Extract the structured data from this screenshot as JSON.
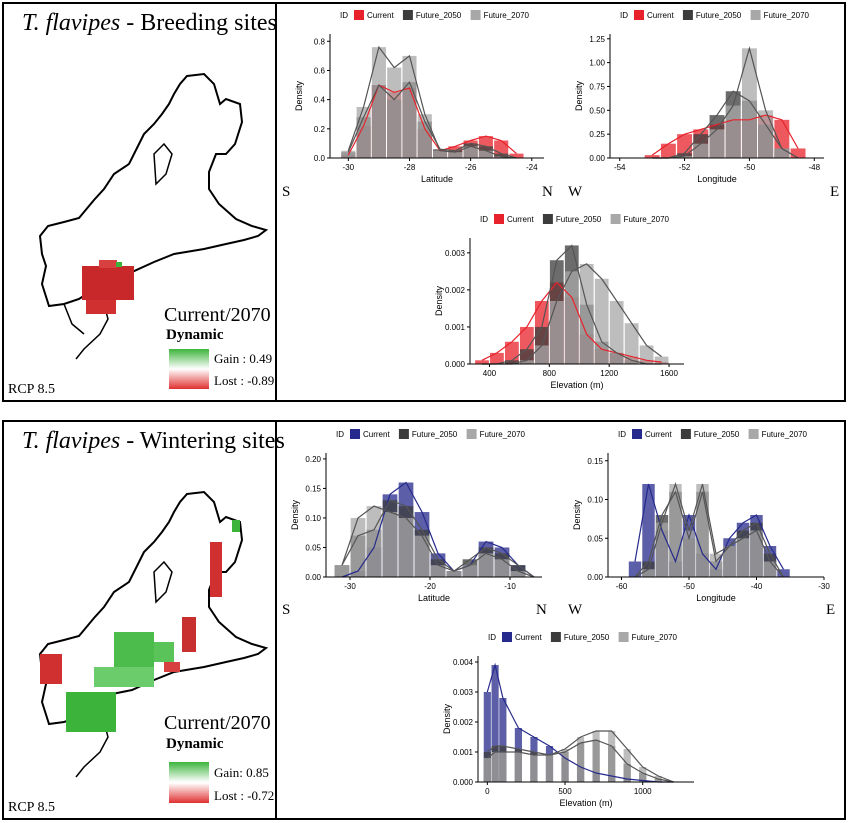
{
  "panels": [
    {
      "title_species": "T. flavipes",
      "title_rest": " - Breeding sites",
      "rcp": "RCP 8.5",
      "legend_title": "Current/2070",
      "legend_dynamic": "Dynamic",
      "gain": "Gain : 0.49",
      "lost": "Lost : -0.89"
    },
    {
      "title_species": "T. flavipes",
      "title_rest": " - Wintering sites",
      "rcp": "RCP 8.5",
      "legend_title": "Current/2070",
      "legend_dynamic": "Dynamic",
      "gain": "Gain: 0.85",
      "lost": "Lost : -0.72"
    }
  ],
  "direction_labels": {
    "south": "S",
    "north": "N",
    "west": "W",
    "east": "E"
  },
  "colors": {
    "breeding_current": "#e8222a",
    "wintering_current": "#262a8c",
    "future_2050": "#3c3c3c",
    "future_2070": "#a8a8a8",
    "gain": "#3cb43c",
    "lost": "#e03030"
  },
  "chart_data": [
    {
      "type": "area",
      "id": "breeding_latitude",
      "legend_title": "ID",
      "legend": [
        "Current",
        "Future_2050",
        "Future_2070"
      ],
      "xlabel": "Latitude",
      "ylabel": "Density",
      "xlim": [
        -30.6,
        -23.6
      ],
      "ylim": [
        0,
        0.85
      ],
      "xticks": [
        "-30",
        "-28",
        "-26",
        "-24"
      ],
      "xtick_values": [
        -30,
        -28,
        -26,
        -24
      ],
      "yticks": [
        "0.0",
        "0.2",
        "0.4",
        "0.6",
        "0.8"
      ],
      "ytick_values": [
        0,
        0.2,
        0.4,
        0.6,
        0.8
      ],
      "x": [
        -30,
        -29.5,
        -29,
        -28.5,
        -28,
        -27.5,
        -27,
        -26.5,
        -26,
        -25.5,
        -25,
        -24.5
      ],
      "series": [
        {
          "name": "Current",
          "values": [
            0.02,
            0.22,
            0.5,
            0.45,
            0.48,
            0.2,
            0.05,
            0.08,
            0.12,
            0.15,
            0.12,
            0.03
          ]
        },
        {
          "name": "Future_2050",
          "values": [
            0.04,
            0.28,
            0.5,
            0.4,
            0.52,
            0.25,
            0.06,
            0.05,
            0.1,
            0.08,
            0.03,
            0.0
          ]
        },
        {
          "name": "Future_2070",
          "values": [
            0.05,
            0.35,
            0.76,
            0.62,
            0.7,
            0.3,
            0.05,
            0.04,
            0.08,
            0.05,
            0.01,
            0.0
          ]
        }
      ]
    },
    {
      "type": "area",
      "id": "breeding_longitude",
      "legend_title": "ID",
      "legend": [
        "Current",
        "Future_2050",
        "Future_2070"
      ],
      "xlabel": "Longitude",
      "ylabel": "Density",
      "xlim": [
        -54.3,
        -47.7
      ],
      "ylim": [
        0,
        1.3
      ],
      "xticks": [
        "-54",
        "-52",
        "-50",
        "-48"
      ],
      "xtick_values": [
        -54,
        -52,
        -50,
        -48
      ],
      "yticks": [
        "0.00",
        "0.25",
        "0.50",
        "0.75",
        "1.00",
        "1.25"
      ],
      "ytick_values": [
        0,
        0.25,
        0.5,
        0.75,
        1,
        1.25
      ],
      "x": [
        -53,
        -52.5,
        -52,
        -51.5,
        -51,
        -50.5,
        -50,
        -49.5,
        -49,
        -48.5
      ],
      "series": [
        {
          "name": "Current",
          "values": [
            0.03,
            0.15,
            0.25,
            0.3,
            0.35,
            0.4,
            0.4,
            0.45,
            0.4,
            0.1
          ]
        },
        {
          "name": "Future_2050",
          "values": [
            0.0,
            0.0,
            0.05,
            0.25,
            0.45,
            0.7,
            0.6,
            0.35,
            0.1,
            0.0
          ]
        },
        {
          "name": "Future_2070",
          "values": [
            0.0,
            0.0,
            0.02,
            0.15,
            0.3,
            0.55,
            1.15,
            0.5,
            0.1,
            0.0
          ]
        }
      ]
    },
    {
      "type": "area",
      "id": "breeding_elevation",
      "legend_title": "ID",
      "legend": [
        "Current",
        "Future_2050",
        "Future_2070"
      ],
      "xlabel": "Elevation (m)",
      "ylabel": "Density",
      "xlim": [
        270,
        1700
      ],
      "ylim": [
        0,
        0.0034
      ],
      "xticks": [
        "400",
        "800",
        "1200",
        "1600"
      ],
      "xtick_values": [
        400,
        800,
        1200,
        1600
      ],
      "yticks": [
        "0.000",
        "0.001",
        "0.002",
        "0.003"
      ],
      "ytick_values": [
        0,
        0.001,
        0.002,
        0.003
      ],
      "x": [
        350,
        450,
        550,
        650,
        750,
        850,
        950,
        1050,
        1150,
        1250,
        1350,
        1450,
        1550
      ],
      "series": [
        {
          "name": "Current",
          "values": [
            0.0001,
            0.0003,
            0.0006,
            0.001,
            0.0017,
            0.0022,
            0.0018,
            0.0008,
            0.0004,
            0.0003,
            0.0002,
            0.0001,
            5e-05
          ]
        },
        {
          "name": "Future_2050",
          "values": [
            0,
            0,
            0.0001,
            0.0004,
            0.001,
            0.0028,
            0.0032,
            0.0016,
            0.0006,
            0.0003,
            0.0001,
            0,
            0
          ]
        },
        {
          "name": "Future_2070",
          "values": [
            0,
            0,
            0,
            0.0001,
            0.0005,
            0.0017,
            0.0025,
            0.0027,
            0.0023,
            0.0017,
            0.0011,
            0.0005,
            0.0002
          ]
        }
      ]
    },
    {
      "type": "area",
      "id": "wintering_latitude",
      "legend_title": "ID",
      "legend": [
        "Current",
        "Future_2050",
        "Future_2070"
      ],
      "xlabel": "Latitude",
      "ylabel": "Density",
      "xlim": [
        -33,
        -6
      ],
      "ylim": [
        0,
        0.21
      ],
      "xticks": [
        "-30",
        "-20",
        "-10"
      ],
      "xtick_values": [
        -30,
        -20,
        -10
      ],
      "yticks": [
        "0.00",
        "0.05",
        "0.10",
        "0.15",
        "0.20"
      ],
      "ytick_values": [
        0,
        0.05,
        0.1,
        0.15,
        0.2
      ],
      "x": [
        -31,
        -29,
        -27,
        -25,
        -23,
        -21,
        -19,
        -17,
        -15,
        -13,
        -11,
        -9,
        -7
      ],
      "series": [
        {
          "name": "Current",
          "values": [
            0,
            0.01,
            0.05,
            0.14,
            0.16,
            0.11,
            0.04,
            0.01,
            0.02,
            0.06,
            0.05,
            0.02,
            0.0
          ]
        },
        {
          "name": "Future_2050",
          "values": [
            0.02,
            0.07,
            0.08,
            0.13,
            0.12,
            0.08,
            0.03,
            0.01,
            0.03,
            0.05,
            0.04,
            0.02,
            0.0
          ]
        },
        {
          "name": "Future_2070",
          "values": [
            0.02,
            0.1,
            0.12,
            0.11,
            0.1,
            0.07,
            0.02,
            0.01,
            0.02,
            0.04,
            0.03,
            0.01,
            0.0
          ]
        }
      ]
    },
    {
      "type": "area",
      "id": "wintering_longitude",
      "legend_title": "ID",
      "legend": [
        "Current",
        "Future_2050",
        "Future_2070"
      ],
      "xlabel": "Longitude",
      "ylabel": "Density",
      "xlim": [
        -62,
        -30
      ],
      "ylim": [
        0,
        0.16
      ],
      "xticks": [
        "-60",
        "-50",
        "-40",
        "-30"
      ],
      "xtick_values": [
        -60,
        -50,
        -40,
        -30
      ],
      "yticks": [
        "0.00",
        "0.05",
        "0.10",
        "0.15"
      ],
      "ytick_values": [
        0,
        0.05,
        0.1,
        0.15
      ],
      "x": [
        -58,
        -56,
        -54,
        -52,
        -50,
        -48,
        -46,
        -44,
        -42,
        -40,
        -38,
        -36
      ],
      "series": [
        {
          "name": "Current",
          "values": [
            0.02,
            0.12,
            0.06,
            0.02,
            0.08,
            0.03,
            0.01,
            0.05,
            0.07,
            0.08,
            0.04,
            0.01
          ]
        },
        {
          "name": "Future_2050",
          "values": [
            0.0,
            0.02,
            0.08,
            0.11,
            0.05,
            0.11,
            0.02,
            0.04,
            0.06,
            0.07,
            0.03,
            0.0
          ]
        },
        {
          "name": "Future_2070",
          "values": [
            0.0,
            0.01,
            0.07,
            0.12,
            0.06,
            0.12,
            0.03,
            0.04,
            0.05,
            0.06,
            0.02,
            0.0
          ]
        }
      ]
    },
    {
      "type": "area",
      "id": "wintering_elevation",
      "legend_title": "ID",
      "legend": [
        "Current",
        "Future_2050",
        "Future_2070"
      ],
      "xlabel": "Elevation (m)",
      "ylabel": "Density",
      "xlim": [
        -60,
        1330
      ],
      "ylim": [
        0,
        0.0042
      ],
      "xticks": [
        "0",
        "500",
        "1000"
      ],
      "xtick_values": [
        0,
        500,
        1000
      ],
      "yticks": [
        "0.000",
        "0.001",
        "0.002",
        "0.003",
        "0.004"
      ],
      "ytick_values": [
        0,
        0.001,
        0.002,
        0.003,
        0.004
      ],
      "x": [
        0,
        50,
        100,
        200,
        300,
        400,
        500,
        600,
        700,
        800,
        900,
        1000,
        1100,
        1200
      ],
      "series": [
        {
          "name": "Current",
          "values": [
            0.003,
            0.0039,
            0.0028,
            0.0018,
            0.0015,
            0.0012,
            0.0008,
            0.0005,
            0.0003,
            0.0002,
            0.0001,
            5e-05,
            0.0,
            0.0
          ]
        },
        {
          "name": "Future_2050",
          "values": [
            0.001,
            0.0012,
            0.0012,
            0.0011,
            0.001,
            0.0009,
            0.001,
            0.0013,
            0.0014,
            0.0012,
            0.0006,
            0.0003,
            0.0001,
            0.0
          ]
        },
        {
          "name": "Future_2070",
          "values": [
            0.0008,
            0.001,
            0.001,
            0.001,
            0.0009,
            0.0009,
            0.0011,
            0.0015,
            0.0017,
            0.0017,
            0.0011,
            0.0005,
            0.0002,
            0.0
          ]
        }
      ]
    }
  ]
}
